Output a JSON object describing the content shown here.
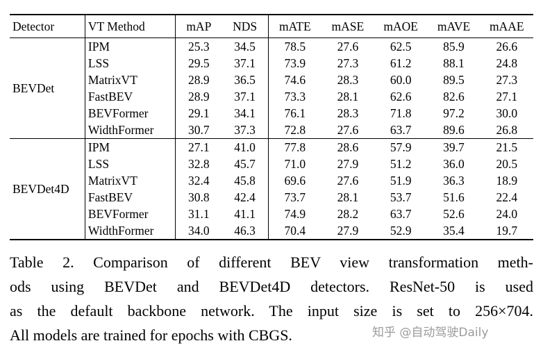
{
  "table": {
    "columns": [
      "Detector",
      "VT Method",
      "mAP",
      "NDS",
      "mATE",
      "mASE",
      "mAOE",
      "mAVE",
      "mAAE"
    ],
    "groups": [
      {
        "detector": "BEVDet",
        "rows": [
          {
            "method": "IPM",
            "values": [
              "25.3",
              "34.5",
              "78.5",
              "27.6",
              "62.5",
              "85.9",
              "26.6"
            ]
          },
          {
            "method": "LSS",
            "values": [
              "29.5",
              "37.1",
              "73.9",
              "27.3",
              "61.2",
              "88.1",
              "24.8"
            ]
          },
          {
            "method": "MatrixVT",
            "values": [
              "28.9",
              "36.5",
              "74.6",
              "28.3",
              "60.0",
              "89.5",
              "27.3"
            ]
          },
          {
            "method": "FastBEV",
            "values": [
              "28.9",
              "37.1",
              "73.3",
              "28.1",
              "62.6",
              "82.6",
              "27.1"
            ]
          },
          {
            "method": "BEVFormer",
            "values": [
              "29.1",
              "34.1",
              "76.1",
              "28.3",
              "71.8",
              "97.2",
              "30.0"
            ]
          },
          {
            "method": "WidthFormer",
            "values": [
              "30.7",
              "37.3",
              "72.8",
              "27.6",
              "63.7",
              "89.6",
              "26.8"
            ]
          }
        ]
      },
      {
        "detector": "BEVDet4D",
        "rows": [
          {
            "method": "IPM",
            "values": [
              "27.1",
              "41.0",
              "77.8",
              "28.6",
              "57.9",
              "39.7",
              "21.5"
            ]
          },
          {
            "method": "LSS",
            "values": [
              "32.8",
              "45.7",
              "71.0",
              "27.9",
              "51.2",
              "36.0",
              "20.5"
            ]
          },
          {
            "method": "MatrixVT",
            "values": [
              "32.4",
              "45.8",
              "69.6",
              "27.6",
              "51.9",
              "36.3",
              "18.9"
            ]
          },
          {
            "method": "FastBEV",
            "values": [
              "30.8",
              "42.4",
              "73.7",
              "28.1",
              "53.7",
              "51.6",
              "22.4"
            ]
          },
          {
            "method": "BEVFormer",
            "values": [
              "31.1",
              "41.1",
              "74.9",
              "28.2",
              "63.7",
              "52.6",
              "24.0"
            ]
          },
          {
            "method": "WidthFormer",
            "values": [
              "34.0",
              "46.3",
              "70.4",
              "27.9",
              "52.9",
              "35.4",
              "19.7"
            ]
          }
        ]
      }
    ]
  },
  "caption": {
    "lines": [
      "Table 2. Comparison of different BEV view transformation meth-",
      "ods using BEVDet and BEVDet4D detectors.  ResNet-50 is used",
      "as the default backbone network. The input size is set to 256×704.",
      "All models are trained for epochs with CBGS."
    ]
  },
  "watermark": "知乎 @自动驾驶Daily"
}
